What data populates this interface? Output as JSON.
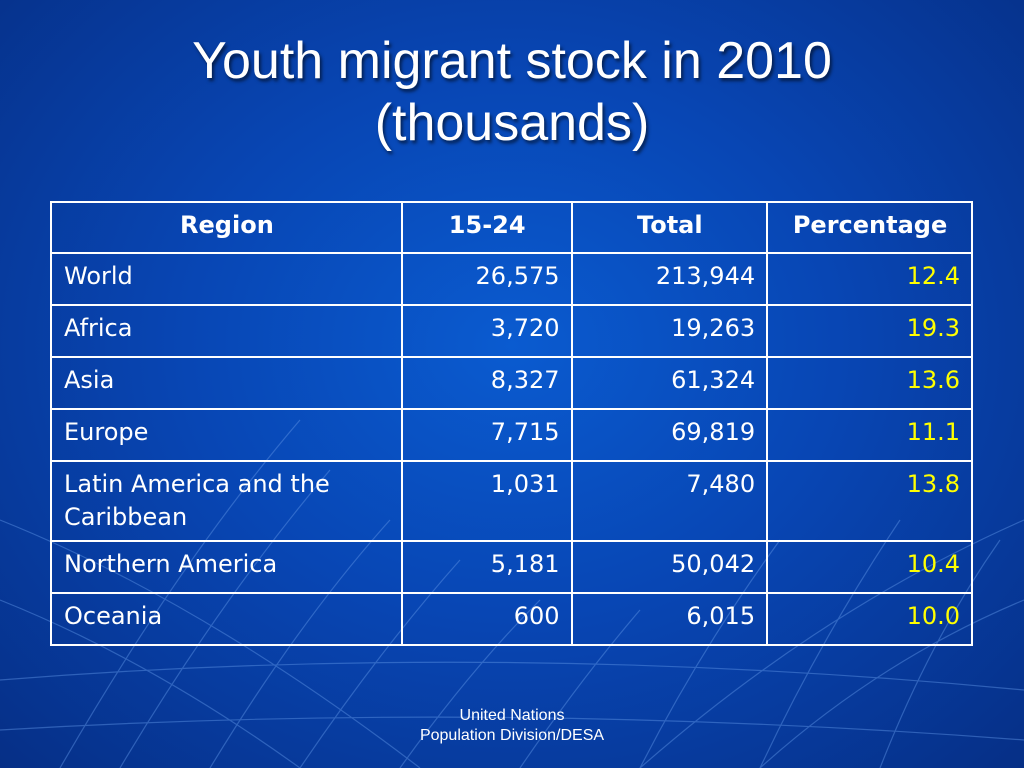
{
  "slide": {
    "title_line1": "Youth migrant stock in 2010",
    "title_line2": "(thousands)"
  },
  "table": {
    "headers": [
      "Region",
      "15-24",
      "Total",
      "Percentage"
    ],
    "rows": [
      {
        "region": "World",
        "youth": "26,575",
        "total": "213,944",
        "pct": "12.4"
      },
      {
        "region": "Africa",
        "youth": "3,720",
        "total": "19,263",
        "pct": "19.3"
      },
      {
        "region": "Asia",
        "youth": "8,327",
        "total": "61,324",
        "pct": "13.6"
      },
      {
        "region": "Europe",
        "youth": "7,715",
        "total": "69,819",
        "pct": "11.1"
      },
      {
        "region": "Latin America and the Caribbean",
        "youth": "1,031",
        "total": "7,480",
        "pct": "13.8"
      },
      {
        "region": "Northern America",
        "youth": "5,181",
        "total": "50,042",
        "pct": "10.4"
      },
      {
        "region": "Oceania",
        "youth": "600",
        "total": "6,015",
        "pct": "10.0"
      }
    ]
  },
  "footer": {
    "line1": "United Nations",
    "line2": "Population Division/DESA"
  },
  "colors": {
    "background": "#0846b4",
    "text": "#ffffff",
    "percentage_text": "#ffff00",
    "border": "#ffffff"
  }
}
